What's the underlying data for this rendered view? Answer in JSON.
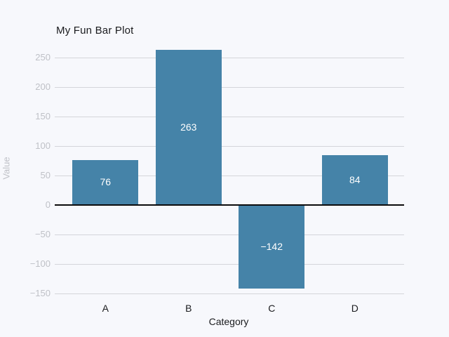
{
  "chart_data": {
    "type": "bar",
    "title": "My Fun Bar Plot",
    "xlabel": "Category",
    "ylabel": "Value",
    "categories": [
      "A",
      "B",
      "C",
      "D"
    ],
    "values": [
      76,
      263,
      -142,
      84
    ],
    "bar_labels": [
      "76",
      "263",
      "-142",
      "84"
    ],
    "yticks": [
      -150,
      -100,
      -50,
      0,
      50,
      100,
      150,
      200,
      250
    ],
    "ylim": [
      -160,
      272
    ],
    "grid": "horizontal-only",
    "legend": "none",
    "colors": {
      "background": "#f7f8fc",
      "bar": "#4583a8",
      "gridline": "#d4d5da",
      "zero_line": "#0b0b0c",
      "tick_label": "#bfc1c7",
      "muted_axis_label": "#bfc1c7",
      "dark_text": "#1a1b1e",
      "bar_label_text": "#ffffff"
    }
  }
}
